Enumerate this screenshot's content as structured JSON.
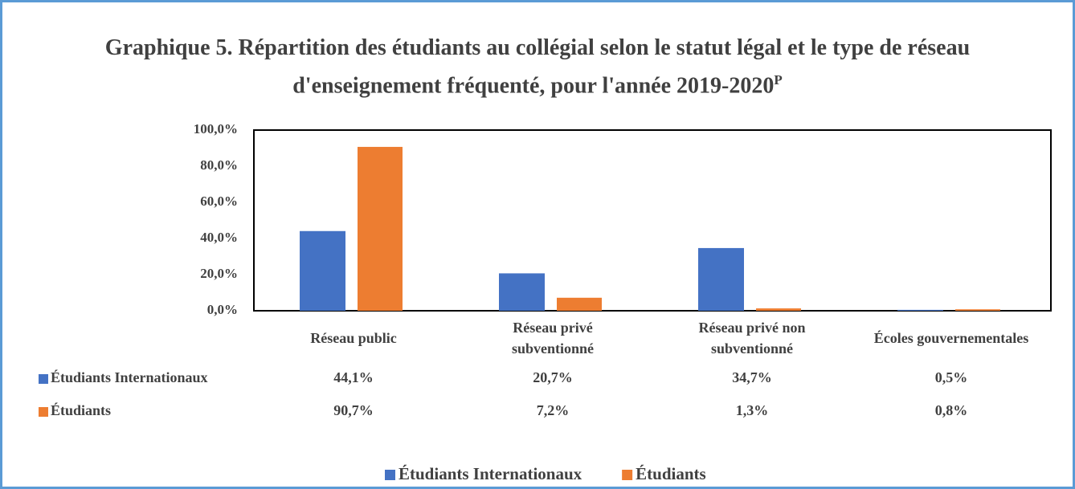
{
  "chart_data": {
    "type": "bar",
    "title": [
      "Graphique 5. Répartition des étudiants au collégial selon le statut légal et le type de réseau",
      "d'enseignement fréquenté, pour l'année 2019-2020"
    ],
    "title_superscript": "P",
    "categories": [
      "Réseau public",
      "Réseau privé subventionné",
      "Réseau privé non subventionné",
      "Écoles gouvernementales"
    ],
    "series": [
      {
        "name": "Étudiants Internationaux",
        "color": "#4472c4",
        "values": [
          44.1,
          20.7,
          34.7,
          0.5
        ],
        "value_labels": [
          "44,1%",
          "20,7%",
          "34,7%",
          "0,5%"
        ]
      },
      {
        "name": "Étudiants",
        "color": "#ed7d31",
        "values": [
          90.7,
          7.2,
          1.3,
          0.8
        ],
        "value_labels": [
          "90,7%",
          "7,2%",
          "1,3%",
          "0,8%"
        ]
      }
    ],
    "ylim": [
      0,
      100
    ],
    "yticks": [
      {
        "value": 0,
        "label": "0,0%"
      },
      {
        "value": 20,
        "label": "20,0%"
      },
      {
        "value": 40,
        "label": "40,0%"
      },
      {
        "value": 60,
        "label": "60,0%"
      },
      {
        "value": 80,
        "label": "80,0%"
      },
      {
        "value": 100,
        "label": "100,0%"
      }
    ],
    "legend": "bottom",
    "grid": false
  }
}
